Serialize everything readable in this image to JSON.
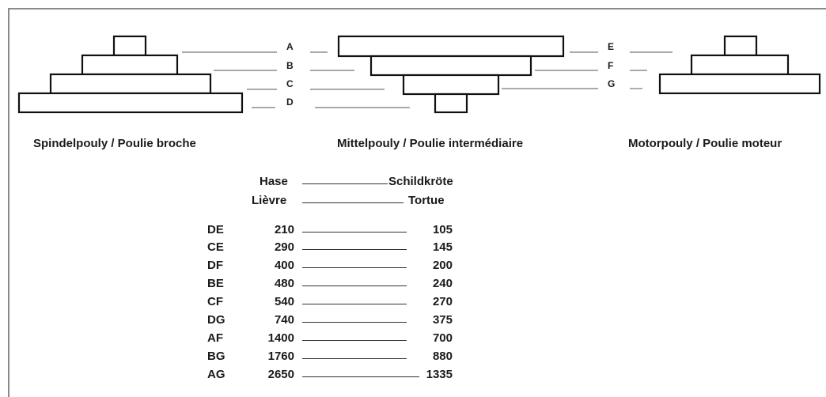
{
  "pulleys": {
    "spindle": {
      "caption": "Spindelpouly / Poulie broche"
    },
    "middle": {
      "caption": "Mittelpouly / Poulie intermédiaire"
    },
    "motor": {
      "caption": "Motorpouly / Poulie moteur"
    }
  },
  "step_letters": [
    "A",
    "B",
    "C",
    "D",
    "E",
    "F",
    "G"
  ],
  "table": {
    "header_hare": "Hase",
    "header_tortoise": "Schildkröte",
    "header_hare_fr": "Lièvre",
    "header_tortoise_fr": "Tortue",
    "rows": [
      {
        "code": "DE",
        "hare": "210",
        "tortoise": "105"
      },
      {
        "code": "CE",
        "hare": "290",
        "tortoise": "145"
      },
      {
        "code": "DF",
        "hare": "400",
        "tortoise": "200"
      },
      {
        "code": "BE",
        "hare": "480",
        "tortoise": "240"
      },
      {
        "code": "CF",
        "hare": "540",
        "tortoise": "270"
      },
      {
        "code": "DG",
        "hare": "740",
        "tortoise": "375"
      },
      {
        "code": "AF",
        "hare": "1400",
        "tortoise": "700"
      },
      {
        "code": "BG",
        "hare": "1760",
        "tortoise": "880"
      },
      {
        "code": "AG",
        "hare": "2650",
        "tortoise": "1335"
      }
    ]
  }
}
